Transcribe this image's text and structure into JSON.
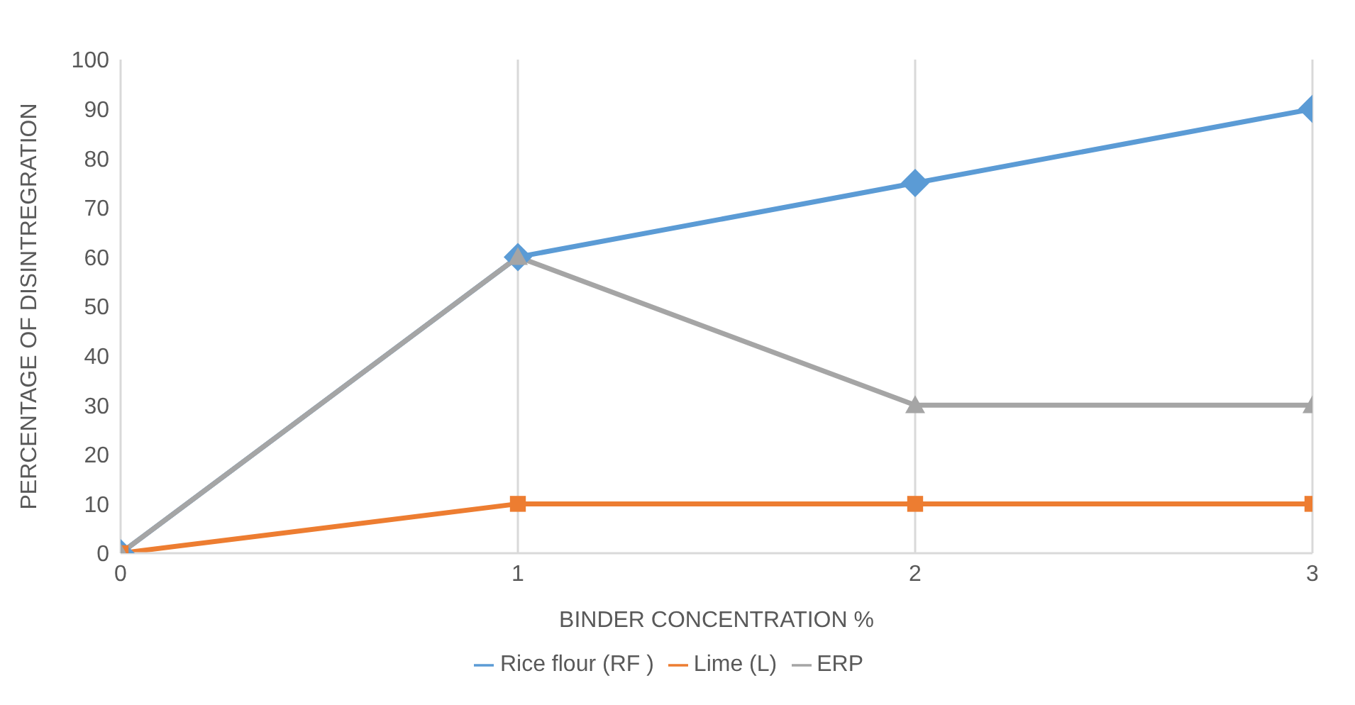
{
  "chart_data": {
    "type": "line",
    "xlabel": "BINDER CONCENTRATION %",
    "ylabel": "PERCENTAGE OF DISINTREGRATION",
    "x": [
      0,
      1,
      2,
      3
    ],
    "xlim": [
      0,
      3
    ],
    "xticks": [
      0,
      1,
      2,
      3
    ],
    "ylim": [
      0,
      100
    ],
    "yticks": [
      0,
      10,
      20,
      30,
      40,
      50,
      60,
      70,
      80,
      90,
      100
    ],
    "grid": "x",
    "legend": "bottom",
    "series": [
      {
        "name": "Rice flour (RF )",
        "color": "#5b9bd5",
        "marker": "diamond",
        "values": [
          0,
          60,
          75,
          90
        ]
      },
      {
        "name": "Lime (L)",
        "color": "#ed7d31",
        "marker": "square",
        "values": [
          0,
          10,
          10,
          10
        ]
      },
      {
        "name": "ERP",
        "color": "#a5a5a5",
        "marker": "triangle",
        "values": [
          0,
          60,
          30,
          30
        ]
      }
    ]
  }
}
